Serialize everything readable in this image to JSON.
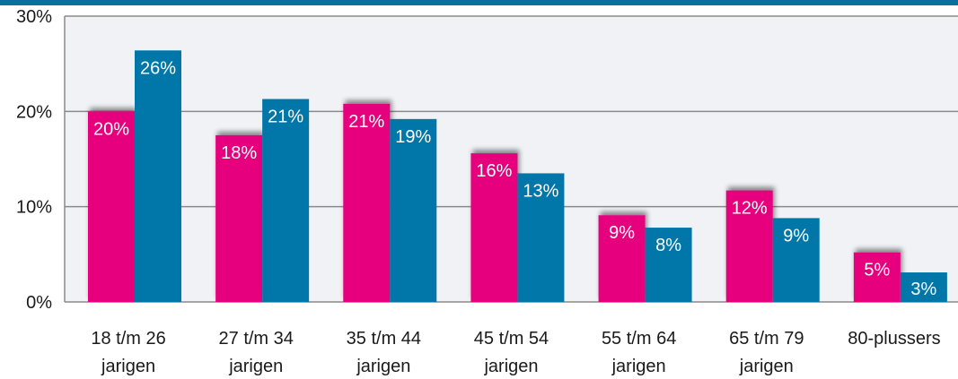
{
  "colors": {
    "series_a": "#e6007e",
    "series_b": "#0077a8",
    "plot_bg": "#f1f2f6",
    "gridline": "#8a8a8a",
    "top_bar": "#0b6fa0",
    "data_label": "#ffffff"
  },
  "chart_data": {
    "type": "bar",
    "categories": [
      [
        "18 t/m 26",
        "jarigen"
      ],
      [
        "27 t/m 34",
        "jarigen"
      ],
      [
        "35 t/m 44",
        "jarigen"
      ],
      [
        "45 t/m 54",
        "jarigen"
      ],
      [
        "55 t/m 64",
        "jarigen"
      ],
      [
        "65 t/m 79",
        "jarigen"
      ],
      [
        "80-plussers"
      ]
    ],
    "series": [
      {
        "values": [
          20,
          17.5,
          20.8,
          15.6,
          9.1,
          11.7,
          5.2
        ],
        "labels": [
          "20%",
          "18%",
          "21%",
          "16%",
          "9%",
          "12%",
          "5%"
        ]
      },
      {
        "values": [
          26.4,
          21.3,
          19.2,
          13.5,
          7.8,
          8.8,
          3.1
        ],
        "labels": [
          "26%",
          "21%",
          "19%",
          "13%",
          "8%",
          "9%",
          "3%"
        ]
      }
    ],
    "ylim": [
      0,
      30
    ],
    "yticks": [
      0,
      10,
      20,
      30
    ],
    "ytick_labels": [
      "0%",
      "10%",
      "20%",
      "30%"
    ],
    "grid": true,
    "title": "",
    "xlabel": "",
    "ylabel": ""
  }
}
